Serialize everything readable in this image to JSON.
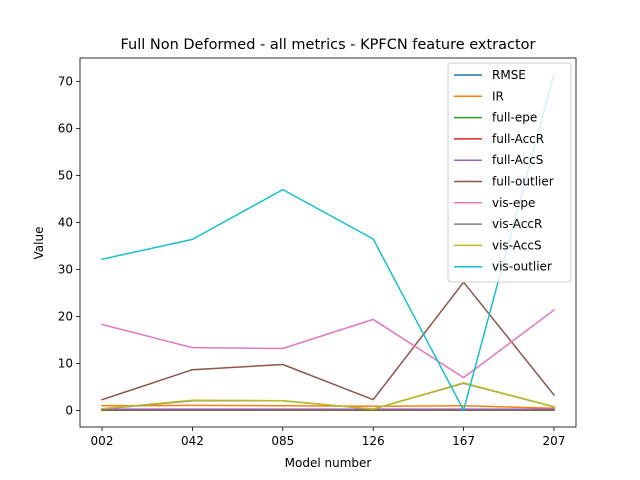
{
  "chart_data": {
    "type": "line",
    "title": "Full Non Deformed - all metrics - KPFCN feature extractor",
    "xlabel": "Model number",
    "ylabel": "Value",
    "categories": [
      "002",
      "042",
      "085",
      "126",
      "167",
      "207"
    ],
    "ylim": [
      -3.5,
      75
    ],
    "yticks": [
      0,
      10,
      20,
      30,
      40,
      50,
      60,
      70
    ],
    "grid": false,
    "legend_position": "top-right",
    "series": [
      {
        "name": "RMSE",
        "color": "#1f77b4",
        "values": [
          0.05,
          0.05,
          0.05,
          0.05,
          0.05,
          0.05
        ]
      },
      {
        "name": "IR",
        "color": "#ff7f0e",
        "values": [
          1.0,
          1.1,
          1.0,
          0.9,
          1.0,
          0.5
        ]
      },
      {
        "name": "full-epe",
        "color": "#2ca02c",
        "values": [
          0.1,
          0.1,
          0.1,
          0.1,
          0.1,
          0.1
        ]
      },
      {
        "name": "full-AccR",
        "color": "#d62728",
        "values": [
          0.2,
          0.2,
          0.2,
          0.2,
          0.2,
          0.2
        ]
      },
      {
        "name": "full-AccS",
        "color": "#9467bd",
        "values": [
          0.3,
          0.3,
          0.3,
          0.3,
          0.3,
          0.3
        ]
      },
      {
        "name": "full-outlier",
        "color": "#8c564b",
        "values": [
          2.3,
          8.7,
          9.8,
          2.3,
          27.3,
          3.3
        ]
      },
      {
        "name": "vis-epe",
        "color": "#e377c2",
        "values": [
          18.3,
          13.4,
          13.2,
          19.4,
          7.0,
          21.4
        ]
      },
      {
        "name": "vis-AccR",
        "color": "#7f7f7f",
        "values": [
          0.3,
          2.1,
          2.1,
          0.3,
          5.8,
          0.8
        ]
      },
      {
        "name": "vis-AccS",
        "color": "#bcbd22",
        "values": [
          0.4,
          2.2,
          2.1,
          0.3,
          5.9,
          0.8
        ]
      },
      {
        "name": "vis-outlier",
        "color": "#17becf",
        "values": [
          32.2,
          36.4,
          47.0,
          36.5,
          0.1,
          71.6
        ]
      }
    ]
  }
}
